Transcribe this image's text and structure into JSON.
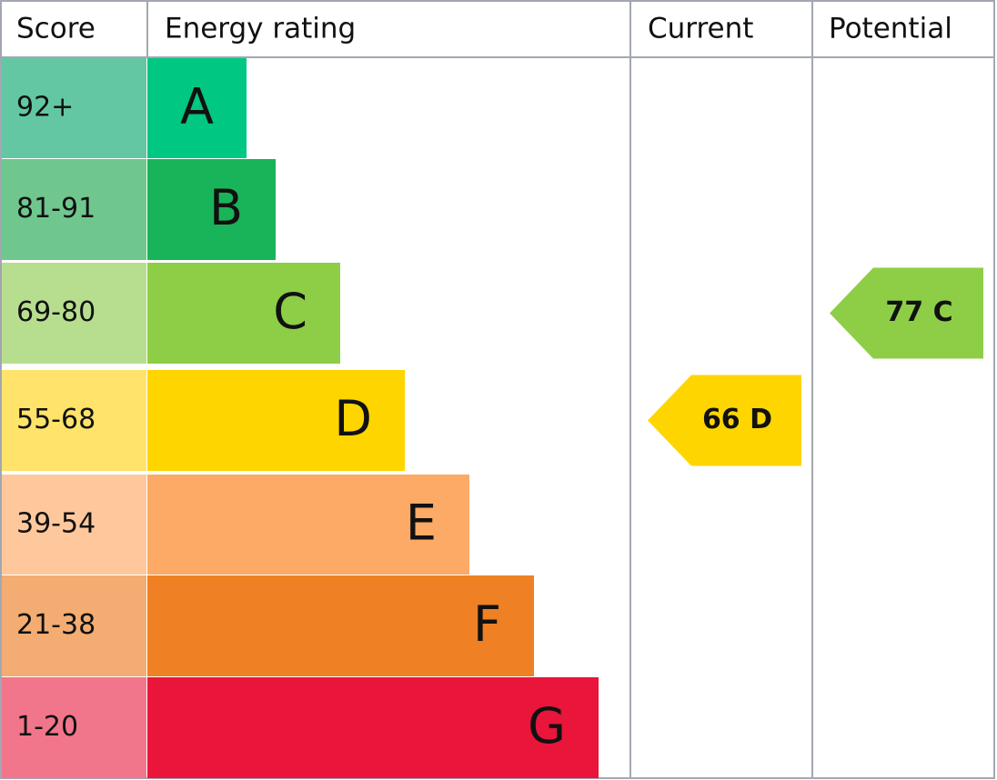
{
  "header": {
    "score": "Score",
    "rating": "Energy rating",
    "current": "Current",
    "potential": "Potential"
  },
  "bands": [
    {
      "score": "92+",
      "letter": "A",
      "color": "#00c781",
      "score_color": "#63c7a3"
    },
    {
      "score": "81-91",
      "letter": "B",
      "color": "#19b459",
      "score_color": "#6fc78e"
    },
    {
      "score": "69-80",
      "letter": "C",
      "color": "#8dce46",
      "score_color": "#b7de8f"
    },
    {
      "score": "55-68",
      "letter": "D",
      "color": "#ffd500",
      "score_color": "#ffe36a"
    },
    {
      "score": "39-54",
      "letter": "E",
      "color": "#fcaa65",
      "score_color": "#fec89c"
    },
    {
      "score": "21-38",
      "letter": "F",
      "color": "#ef8023",
      "score_color": "#f3ad72"
    },
    {
      "score": "1-20",
      "letter": "G",
      "color": "#e9153b",
      "score_color": "#f1758b"
    }
  ],
  "current": {
    "label": "66 D",
    "band": 3
  },
  "potential": {
    "label": "77 C",
    "band": 2
  }
}
